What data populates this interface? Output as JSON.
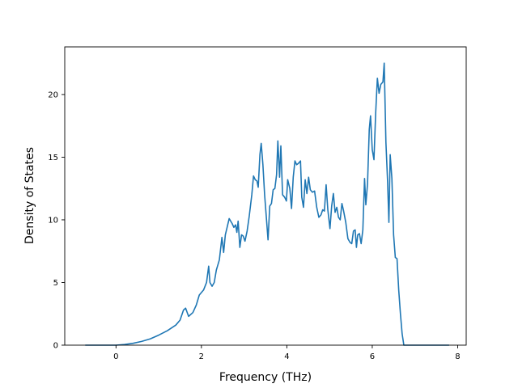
{
  "chart_data": {
    "type": "line",
    "title": "",
    "xlabel": "Frequency (THz)",
    "ylabel": "Density of States",
    "xlim": [
      -1.2,
      8.2
    ],
    "ylim": [
      0,
      23.8
    ],
    "x_ticks": [
      0,
      2,
      4,
      6,
      8
    ],
    "y_ticks": [
      0,
      5,
      10,
      15,
      20
    ],
    "grid": false,
    "series": [
      {
        "color": "#1f77b4",
        "points": [
          [
            -0.72,
            0.0
          ],
          [
            -0.5,
            0.0
          ],
          [
            -0.2,
            0.0
          ],
          [
            0.0,
            0.0
          ],
          [
            0.2,
            0.05
          ],
          [
            0.4,
            0.15
          ],
          [
            0.6,
            0.3
          ],
          [
            0.8,
            0.5
          ],
          [
            1.0,
            0.8
          ],
          [
            1.2,
            1.15
          ],
          [
            1.4,
            1.6
          ],
          [
            1.5,
            2.0
          ],
          [
            1.58,
            2.8
          ],
          [
            1.63,
            2.95
          ],
          [
            1.7,
            2.3
          ],
          [
            1.8,
            2.6
          ],
          [
            1.88,
            3.2
          ],
          [
            1.95,
            4.0
          ],
          [
            2.05,
            4.4
          ],
          [
            2.12,
            5.0
          ],
          [
            2.17,
            6.3
          ],
          [
            2.2,
            5.0
          ],
          [
            2.25,
            4.7
          ],
          [
            2.3,
            5.0
          ],
          [
            2.35,
            6.0
          ],
          [
            2.42,
            6.8
          ],
          [
            2.48,
            8.6
          ],
          [
            2.52,
            7.4
          ],
          [
            2.56,
            8.8
          ],
          [
            2.65,
            10.1
          ],
          [
            2.72,
            9.7
          ],
          [
            2.76,
            9.4
          ],
          [
            2.8,
            9.6
          ],
          [
            2.83,
            9.0
          ],
          [
            2.86,
            9.9
          ],
          [
            2.9,
            7.8
          ],
          [
            2.94,
            8.8
          ],
          [
            2.98,
            8.7
          ],
          [
            3.02,
            8.3
          ],
          [
            3.07,
            9.1
          ],
          [
            3.12,
            10.3
          ],
          [
            3.18,
            12.0
          ],
          [
            3.22,
            13.5
          ],
          [
            3.26,
            13.2
          ],
          [
            3.3,
            13.1
          ],
          [
            3.33,
            12.6
          ],
          [
            3.37,
            15.2
          ],
          [
            3.4,
            16.1
          ],
          [
            3.44,
            14.4
          ],
          [
            3.48,
            12.0
          ],
          [
            3.52,
            10.2
          ],
          [
            3.56,
            8.4
          ],
          [
            3.6,
            11.1
          ],
          [
            3.64,
            11.3
          ],
          [
            3.68,
            12.4
          ],
          [
            3.72,
            12.5
          ],
          [
            3.76,
            13.6
          ],
          [
            3.79,
            16.3
          ],
          [
            3.83,
            13.4
          ],
          [
            3.86,
            15.9
          ],
          [
            3.9,
            12.0
          ],
          [
            3.95,
            11.8
          ],
          [
            3.99,
            11.5
          ],
          [
            4.02,
            13.2
          ],
          [
            4.07,
            12.5
          ],
          [
            4.11,
            10.9
          ],
          [
            4.15,
            13.4
          ],
          [
            4.19,
            14.7
          ],
          [
            4.23,
            14.4
          ],
          [
            4.27,
            14.5
          ],
          [
            4.32,
            14.7
          ],
          [
            4.35,
            11.8
          ],
          [
            4.39,
            11.0
          ],
          [
            4.43,
            13.2
          ],
          [
            4.47,
            12.1
          ],
          [
            4.51,
            13.4
          ],
          [
            4.55,
            12.4
          ],
          [
            4.6,
            12.2
          ],
          [
            4.65,
            12.3
          ],
          [
            4.7,
            11.0
          ],
          [
            4.75,
            10.2
          ],
          [
            4.8,
            10.4
          ],
          [
            4.84,
            10.8
          ],
          [
            4.88,
            10.7
          ],
          [
            4.92,
            12.8
          ],
          [
            4.96,
            10.8
          ],
          [
            5.01,
            9.3
          ],
          [
            5.05,
            11.1
          ],
          [
            5.09,
            12.1
          ],
          [
            5.13,
            10.6
          ],
          [
            5.17,
            11.0
          ],
          [
            5.21,
            10.2
          ],
          [
            5.25,
            10.0
          ],
          [
            5.29,
            11.3
          ],
          [
            5.33,
            10.7
          ],
          [
            5.38,
            9.8
          ],
          [
            5.43,
            8.5
          ],
          [
            5.48,
            8.2
          ],
          [
            5.52,
            8.1
          ],
          [
            5.56,
            9.1
          ],
          [
            5.6,
            9.2
          ],
          [
            5.63,
            7.8
          ],
          [
            5.66,
            8.8
          ],
          [
            5.7,
            8.9
          ],
          [
            5.74,
            8.1
          ],
          [
            5.78,
            9.2
          ],
          [
            5.82,
            13.3
          ],
          [
            5.85,
            11.2
          ],
          [
            5.89,
            12.9
          ],
          [
            5.93,
            17.2
          ],
          [
            5.96,
            18.3
          ],
          [
            6.0,
            15.6
          ],
          [
            6.04,
            14.8
          ],
          [
            6.08,
            18.5
          ],
          [
            6.12,
            21.3
          ],
          [
            6.16,
            20.1
          ],
          [
            6.2,
            20.8
          ],
          [
            6.25,
            21.0
          ],
          [
            6.28,
            22.5
          ],
          [
            6.32,
            16.2
          ],
          [
            6.36,
            13.0
          ],
          [
            6.39,
            9.8
          ],
          [
            6.42,
            15.2
          ],
          [
            6.46,
            13.3
          ],
          [
            6.5,
            8.8
          ],
          [
            6.54,
            7.0
          ],
          [
            6.58,
            6.9
          ],
          [
            6.62,
            4.4
          ],
          [
            6.66,
            2.5
          ],
          [
            6.7,
            0.9
          ],
          [
            6.74,
            0.0
          ],
          [
            6.9,
            0.0
          ],
          [
            7.2,
            0.0
          ],
          [
            7.5,
            0.0
          ],
          [
            7.8,
            0.0
          ]
        ]
      }
    ]
  }
}
